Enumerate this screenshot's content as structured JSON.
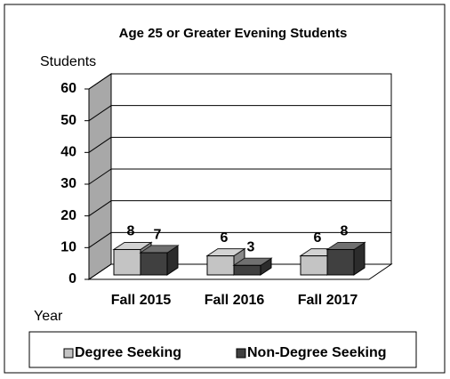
{
  "chart_data": {
    "type": "bar3d",
    "title": "Age 25 or Greater Evening Students",
    "y_label": "Students",
    "x_label": "Year",
    "categories": [
      "Fall 2015",
      "Fall 2016",
      "Fall 2017"
    ],
    "series": [
      {
        "name": "Degree Seeking",
        "color": "#c4c4c4",
        "values": [
          8,
          6,
          6
        ]
      },
      {
        "name": "Non-Degree Seeking",
        "color": "#404040",
        "values": [
          7,
          3,
          8
        ]
      }
    ],
    "ylim": [
      0,
      60
    ],
    "yticks": [
      0,
      10,
      20,
      30,
      40,
      50,
      60
    ],
    "grid": true,
    "legend": "bottom"
  }
}
